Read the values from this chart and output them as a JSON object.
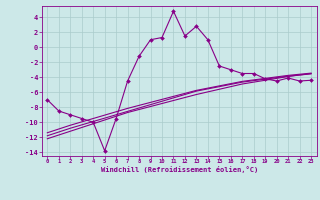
{
  "xlabel": "Windchill (Refroidissement éolien,°C)",
  "background_color": "#cce8e8",
  "grid_color": "#aacccc",
  "line_color": "#880088",
  "xlim": [
    -0.5,
    23.5
  ],
  "ylim": [
    -14.5,
    5.5
  ],
  "xticks": [
    0,
    1,
    2,
    3,
    4,
    5,
    6,
    7,
    8,
    9,
    10,
    11,
    12,
    13,
    14,
    15,
    16,
    17,
    18,
    19,
    20,
    21,
    22,
    23
  ],
  "yticks": [
    -14,
    -12,
    -10,
    -8,
    -6,
    -4,
    -2,
    0,
    2,
    4
  ],
  "hours": [
    0,
    1,
    2,
    3,
    4,
    5,
    6,
    7,
    8,
    9,
    10,
    11,
    12,
    13,
    14,
    15,
    16,
    17,
    18,
    19,
    20,
    21,
    22,
    23
  ],
  "line1": [
    -7.0,
    -8.5,
    -9.0,
    -9.5,
    -10.0,
    -13.8,
    -9.5,
    -4.5,
    -1.2,
    1.0,
    1.3,
    4.8,
    1.5,
    2.8,
    1.0,
    -2.5,
    -3.0,
    -3.5,
    -3.5,
    -4.2,
    -4.5,
    -4.1,
    -4.5,
    -4.4
  ],
  "reg1": [
    -11.8,
    -11.3,
    -10.8,
    -10.35,
    -9.9,
    -9.45,
    -9.0,
    -8.55,
    -8.1,
    -7.65,
    -7.2,
    -6.75,
    -6.3,
    -5.85,
    -5.55,
    -5.25,
    -4.95,
    -4.65,
    -4.45,
    -4.25,
    -4.05,
    -3.85,
    -3.7,
    -3.55
  ],
  "reg2": [
    -12.2,
    -11.7,
    -11.2,
    -10.7,
    -10.2,
    -9.7,
    -9.2,
    -8.7,
    -8.3,
    -7.9,
    -7.5,
    -7.1,
    -6.7,
    -6.3,
    -5.95,
    -5.6,
    -5.25,
    -4.9,
    -4.65,
    -4.4,
    -4.15,
    -3.9,
    -3.7,
    -3.5
  ],
  "reg3": [
    -11.4,
    -10.9,
    -10.4,
    -9.95,
    -9.5,
    -9.05,
    -8.6,
    -8.15,
    -7.75,
    -7.35,
    -6.95,
    -6.55,
    -6.15,
    -5.75,
    -5.45,
    -5.15,
    -4.85,
    -4.55,
    -4.35,
    -4.15,
    -3.95,
    -3.75,
    -3.6,
    -3.45
  ]
}
